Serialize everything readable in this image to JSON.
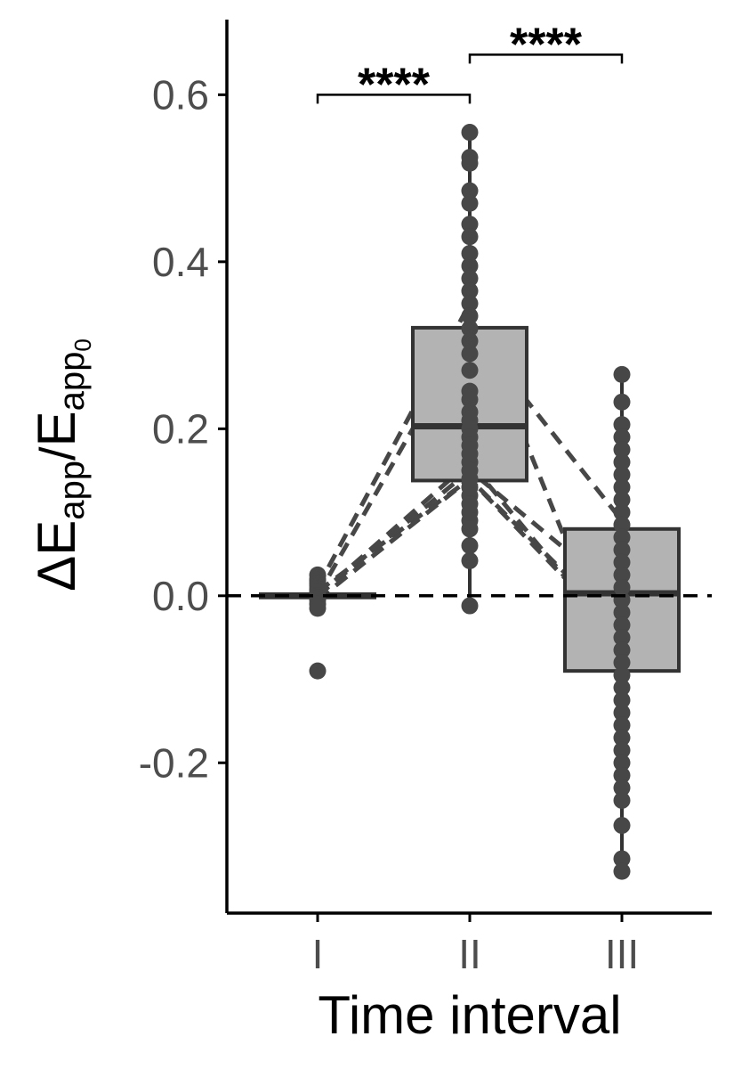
{
  "chart_data": {
    "type": "box",
    "xlabel": "Time interval",
    "ylabel": {
      "delta": "Δ",
      "main": "E",
      "sub": "app",
      "sep": "/",
      "main2": "E",
      "sub2": "app",
      "subsub2": "0"
    },
    "categories": [
      "I",
      "II",
      "III"
    ],
    "ylim": [
      -0.38,
      0.69
    ],
    "yticks": [
      {
        "value": -0.2,
        "label": "-0.2"
      },
      {
        "value": 0.0,
        "label": "0.0"
      },
      {
        "value": 0.2,
        "label": "0.2"
      },
      {
        "value": 0.4,
        "label": "0.4"
      },
      {
        "value": 0.6,
        "label": "0.6"
      }
    ],
    "reference_line": 0.0,
    "grid": false,
    "colors": {
      "box_fill": "#b3b3b3",
      "box_stroke": "#333333",
      "points": "#474747",
      "dashes": "#474747",
      "axis": "#000000"
    },
    "boxes": [
      {
        "category": "I",
        "q1": -0.002,
        "median": 0.0,
        "q3": 0.002,
        "whisker_low": -0.015,
        "whisker_high": 0.02,
        "points": [
          0.025,
          0.02,
          0.018,
          0.015,
          0.012,
          0.008,
          0.005,
          0.0,
          -0.002,
          -0.005,
          -0.01,
          -0.015,
          -0.09
        ]
      },
      {
        "category": "II",
        "q1": 0.138,
        "median": 0.203,
        "q3": 0.321,
        "whisker_low": -0.012,
        "whisker_high": 0.555,
        "points": [
          0.555,
          0.525,
          0.518,
          0.485,
          0.47,
          0.445,
          0.43,
          0.41,
          0.395,
          0.38,
          0.365,
          0.35,
          0.335,
          0.32,
          0.305,
          0.29,
          0.27,
          0.245,
          0.235,
          0.22,
          0.21,
          0.2,
          0.19,
          0.18,
          0.17,
          0.16,
          0.15,
          0.14,
          0.13,
          0.12,
          0.11,
          0.1,
          0.09,
          0.08,
          0.06,
          0.042,
          -0.012
        ]
      },
      {
        "category": "III",
        "q1": -0.09,
        "median": 0.003,
        "q3": 0.08,
        "whisker_low": -0.33,
        "whisker_high": 0.265,
        "points": [
          0.265,
          0.232,
          0.205,
          0.19,
          0.175,
          0.16,
          0.145,
          0.13,
          0.115,
          0.1,
          0.085,
          0.07,
          0.055,
          0.04,
          0.025,
          0.01,
          -0.005,
          -0.02,
          -0.035,
          -0.05,
          -0.065,
          -0.08,
          -0.095,
          -0.11,
          -0.125,
          -0.14,
          -0.155,
          -0.17,
          -0.185,
          -0.2,
          -0.215,
          -0.23,
          -0.245,
          -0.275,
          -0.315,
          -0.33
        ]
      }
    ],
    "paired_lines": [
      [
        0.01,
        0.35,
        -0.1
      ],
      [
        0.0,
        0.32,
        0.09
      ],
      [
        0.005,
        0.14,
        -0.05
      ],
      [
        0.0,
        0.15,
        0.0
      ],
      [
        0.0,
        0.16,
        -0.06
      ],
      [
        -0.005,
        0.14,
        -0.04
      ]
    ],
    "significance": [
      {
        "from": "I",
        "to": "II",
        "label": "****",
        "y": 0.6
      },
      {
        "from": "II",
        "to": "III",
        "label": "****",
        "y": 0.648
      }
    ]
  }
}
